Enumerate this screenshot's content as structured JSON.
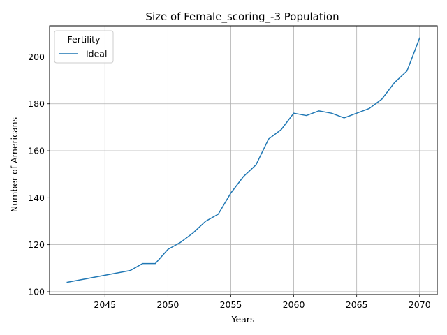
{
  "chart_data": {
    "type": "line",
    "title": "Size of Female_scoring_-3 Population",
    "xlabel": "Years",
    "ylabel": "Number of Americans",
    "xlim": [
      2040.6,
      2071.4
    ],
    "ylim": [
      98.8,
      213.2
    ],
    "xticks": [
      2045,
      2050,
      2055,
      2060,
      2065,
      2070
    ],
    "yticks": [
      100,
      120,
      140,
      160,
      180,
      200
    ],
    "grid": true,
    "legend": {
      "title": "Fertility",
      "placement": "top-left"
    },
    "series": [
      {
        "name": "Ideal",
        "color": "#1f77b4",
        "x": [
          2042,
          2043,
          2044,
          2045,
          2046,
          2047,
          2048,
          2049,
          2050,
          2051,
          2052,
          2053,
          2054,
          2055,
          2056,
          2057,
          2058,
          2059,
          2060,
          2061,
          2062,
          2063,
          2064,
          2065,
          2066,
          2067,
          2068,
          2069,
          2070
        ],
        "y": [
          104,
          105,
          106,
          107,
          108,
          109,
          112,
          112,
          118,
          121,
          125,
          130,
          133,
          142,
          149,
          154,
          165,
          169,
          176,
          175,
          177,
          176,
          174,
          176,
          178,
          182,
          189,
          194,
          208
        ]
      }
    ]
  }
}
